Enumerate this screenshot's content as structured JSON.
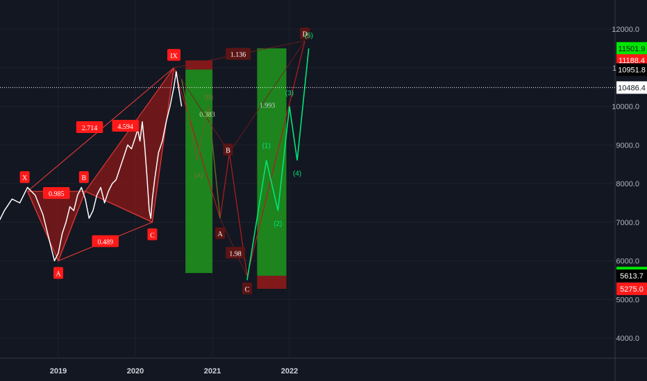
{
  "chart_data": {
    "type": "line",
    "x_axis": {
      "ticks": [
        "2019",
        "2020",
        "2021",
        "2022"
      ]
    },
    "y_axis": {
      "ticks": [
        4000,
        5000,
        6000,
        7000,
        8000,
        9000,
        10000,
        11000,
        12000
      ],
      "ylim": [
        3500,
        12800
      ]
    },
    "price_series": {
      "name": "",
      "color": "#ffffff",
      "points": [
        [
          2017.9,
          6300
        ],
        [
          2018.0,
          6700
        ],
        [
          2018.1,
          7000
        ],
        [
          2018.2,
          6900
        ],
        [
          2018.3,
          7300
        ],
        [
          2018.4,
          7600
        ],
        [
          2018.5,
          7500
        ],
        [
          2018.6,
          7900
        ],
        [
          2018.7,
          7700
        ],
        [
          2018.8,
          7200
        ],
        [
          2018.85,
          6800
        ],
        [
          2018.9,
          6400
        ],
        [
          2018.95,
          6000
        ],
        [
          2019.0,
          6200
        ],
        [
          2019.05,
          6700
        ],
        [
          2019.1,
          7000
        ],
        [
          2019.15,
          7400
        ],
        [
          2019.2,
          7300
        ],
        [
          2019.25,
          7700
        ],
        [
          2019.3,
          7900
        ],
        [
          2019.35,
          7600
        ],
        [
          2019.4,
          7100
        ],
        [
          2019.45,
          7300
        ],
        [
          2019.5,
          7700
        ],
        [
          2019.55,
          7900
        ],
        [
          2019.6,
          7500
        ],
        [
          2019.65,
          7800
        ],
        [
          2019.7,
          8000
        ],
        [
          2019.75,
          8100
        ],
        [
          2019.8,
          8400
        ],
        [
          2019.85,
          8700
        ],
        [
          2019.9,
          9000
        ],
        [
          2019.95,
          8900
        ],
        [
          2020.0,
          9200
        ],
        [
          2020.03,
          9400
        ],
        [
          2020.06,
          9100
        ],
        [
          2020.09,
          9600
        ],
        [
          2020.12,
          9000
        ],
        [
          2020.15,
          8200
        ],
        [
          2020.18,
          7300
        ],
        [
          2020.2,
          7100
        ],
        [
          2020.22,
          7600
        ],
        [
          2020.25,
          8100
        ],
        [
          2020.3,
          8800
        ],
        [
          2020.35,
          9100
        ],
        [
          2020.4,
          9600
        ],
        [
          2020.45,
          10000
        ],
        [
          2020.5,
          10500
        ],
        [
          2020.53,
          10900
        ],
        [
          2020.56,
          10500
        ],
        [
          2020.6,
          10000
        ]
      ]
    },
    "harmonic_pattern": {
      "color": "#b71c1c",
      "points": [
        {
          "label": "X",
          "x": 2018.6,
          "y": 7800
        },
        {
          "label": "A",
          "x": 2019.0,
          "y": 6000
        },
        {
          "label": "B",
          "x": 2019.35,
          "y": 7800
        },
        {
          "label": "C",
          "x": 2020.22,
          "y": 7000
        },
        {
          "label": "IX",
          "x": 2020.5,
          "y": 11000
        }
      ],
      "ratios": [
        "0.985",
        "0.489",
        "2.714",
        "4.594"
      ]
    },
    "projection_pattern": {
      "color": "#b71c1c",
      "points": [
        {
          "label": "A",
          "x": 2021.1,
          "y": 7100
        },
        {
          "label": "B",
          "x": 2021.22,
          "y": 8800
        },
        {
          "label": "C",
          "x": 2021.45,
          "y": 5600
        },
        {
          "label": "D",
          "x": 2022.2,
          "y": 11700
        }
      ],
      "ratios": [
        "1.136",
        "1.98",
        "1.993"
      ]
    },
    "wave_a": {
      "color": "#5a6a1f",
      "points": [
        [
          2020.6,
          10700
        ],
        [
          2020.8,
          8600
        ],
        [
          2020.95,
          10000
        ],
        [
          2021.1,
          7100
        ]
      ],
      "labels": [
        "(A)",
        "(B)",
        "0.383"
      ]
    },
    "wave_b": {
      "color": "#00e676",
      "points": [
        [
          2021.45,
          5500
        ],
        [
          2021.7,
          8600
        ],
        [
          2021.85,
          7300
        ],
        [
          2022.0,
          10000
        ],
        [
          2022.1,
          8600
        ],
        [
          2022.25,
          11500
        ]
      ],
      "labels": [
        "(1)",
        "(2)",
        "(3)",
        "(4)",
        "(5)"
      ]
    },
    "zones": [
      {
        "name": "short-target",
        "x0": 2020.65,
        "x1": 2021.0,
        "y0": 5683.7,
        "y1": 10951.8,
        "color": "#1e8e1e"
      },
      {
        "name": "short-stop",
        "x0": 2020.65,
        "x1": 2021.0,
        "y0": 10951.8,
        "y1": 11188.4,
        "color": "#8b1a1a"
      },
      {
        "name": "long-target",
        "x0": 2021.58,
        "x1": 2021.96,
        "y0": 5613.7,
        "y1": 11501.9,
        "color": "#1e8e1e"
      },
      {
        "name": "long-stop",
        "x0": 2021.58,
        "x1": 2021.96,
        "y0": 5275.0,
        "y1": 5613.7,
        "color": "#8b1a1a"
      }
    ],
    "current_price_line": 10486.4,
    "price_badges": [
      {
        "value": "11501.9",
        "color": "#00e600",
        "text_color": "#131722"
      },
      {
        "value": "11188.4",
        "color": "#ff1a1a",
        "text_color": "#ffffff"
      },
      {
        "value": "10951.8",
        "color": "#000000",
        "text_color": "#ffffff"
      },
      {
        "value": "10486.4",
        "color": "#ffffff",
        "text_color": "#131722"
      },
      {
        "value": "5683.7",
        "color": "#00e600",
        "text_color": "#131722"
      },
      {
        "value": "5613.7",
        "color": "#000000",
        "text_color": "#ffffff"
      },
      {
        "value": "5275.0",
        "color": "#ff1a1a",
        "text_color": "#ffffff"
      }
    ]
  }
}
